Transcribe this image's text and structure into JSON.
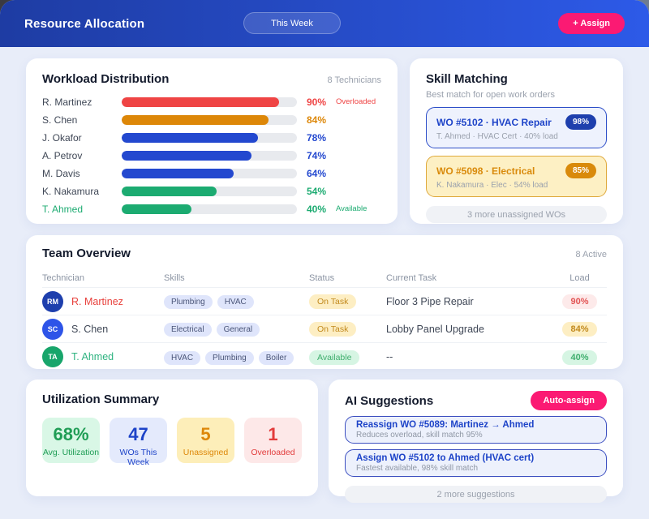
{
  "header": {
    "title": "Resource Allocation",
    "period_button": "This Week",
    "assign_button": "+ Assign"
  },
  "workload": {
    "title": "Workload Distribution",
    "count_label": "8 Technicians",
    "rows": [
      {
        "name": "R. Martinez",
        "pct": "90%",
        "status": "Overloaded",
        "color": "#ef4444",
        "name_color": "#3f4756"
      },
      {
        "name": "S. Chen",
        "pct": "84%",
        "status": "",
        "color": "#dd8708",
        "name_color": "#3f4756"
      },
      {
        "name": "J. Okafor",
        "pct": "78%",
        "status": "",
        "color": "#2348cf",
        "name_color": "#3f4756"
      },
      {
        "name": "A. Petrov",
        "pct": "74%",
        "status": "",
        "color": "#2348cf",
        "name_color": "#3f4756"
      },
      {
        "name": "M. Davis",
        "pct": "64%",
        "status": "",
        "color": "#2348cf",
        "name_color": "#3f4756"
      },
      {
        "name": "K. Nakamura",
        "pct": "54%",
        "status": "",
        "color": "#1cab71",
        "name_color": "#3f4756"
      },
      {
        "name": "T. Ahmed",
        "pct": "40%",
        "status": "Available",
        "color": "#1cab71",
        "name_color": "#1cab71"
      }
    ]
  },
  "skill_matching": {
    "title": "Skill Matching",
    "subtitle": "Best match for open work orders",
    "cards": [
      {
        "wo": "WO #5102 · HVAC Repair",
        "details": "T. Ahmed · HVAC Cert · 40% load",
        "match": "98%",
        "accent": "#1d43c8",
        "bg": "#eef2fd",
        "border": "#2d4ec8",
        "badge_bg": "#1e3fad"
      },
      {
        "wo": "WO #5098 · Electrical",
        "details": "K. Nakamura · Elec · 54% load",
        "match": "85%",
        "accent": "#d98a0b",
        "bg": "#fdf0c4",
        "border": "#dfa93c",
        "badge_bg": "#d98a0b"
      }
    ],
    "more_label": "3 more unassigned WOs"
  },
  "team": {
    "title": "Team Overview",
    "active_label": "8 Active",
    "columns": [
      "Technician",
      "Skills",
      "Status",
      "Current Task",
      "Load"
    ],
    "rows": [
      {
        "initials": "RM",
        "avatar_color": "#1e3fad",
        "name": "R. Martinez",
        "name_color": "#e8413c",
        "skills": [
          "Plumbing",
          "HVAC"
        ],
        "status": "On Task",
        "task": "Floor 3 Pipe Repair",
        "load": "90%"
      },
      {
        "initials": "SC",
        "avatar_color": "#2e54e8",
        "name": "S. Chen",
        "name_color": "#3f4756",
        "skills": [
          "Electrical",
          "General"
        ],
        "status": "On Task",
        "task": "Lobby Panel Upgrade",
        "load": "84%"
      },
      {
        "initials": "TA",
        "avatar_color": "#18a56b",
        "name": "T. Ahmed",
        "name_color": "#2eb380",
        "skills": [
          "HVAC",
          "Plumbing",
          "Boiler"
        ],
        "status": "Available",
        "task": "--",
        "load": "40%"
      }
    ]
  },
  "utilization": {
    "title": "Utilization Summary",
    "stats": [
      {
        "value": "68%",
        "label": "Avg. Utilization",
        "bg": "#d9f7e6",
        "color": "#1f9d55"
      },
      {
        "value": "47",
        "label": "WOs This Week",
        "bg": "#e4eafc",
        "color": "#1d43c8"
      },
      {
        "value": "5",
        "label": "Unassigned",
        "bg": "#fdeeb9",
        "color": "#dd8708"
      },
      {
        "value": "1",
        "label": "Overloaded",
        "bg": "#fde8e8",
        "color": "#e23c3c"
      }
    ]
  },
  "ai": {
    "title": "AI Suggestions",
    "auto_assign_button": "Auto-assign",
    "suggestions": [
      {
        "title": "Reassign WO #5089: Martinez → Ahmed",
        "subtitle": "Reduces overload, skill match 95%"
      },
      {
        "title": "Assign WO #5102 to Ahmed (HVAC cert)",
        "subtitle": "Fastest available, 98% skill match"
      }
    ],
    "more_label": "2 more suggestions"
  },
  "colors": {
    "accent_pink": "#fb1a73",
    "header_gradient_start": "#1e3ca3",
    "header_gradient_end": "#2d5ae8",
    "page_background": "#e8edf9"
  }
}
